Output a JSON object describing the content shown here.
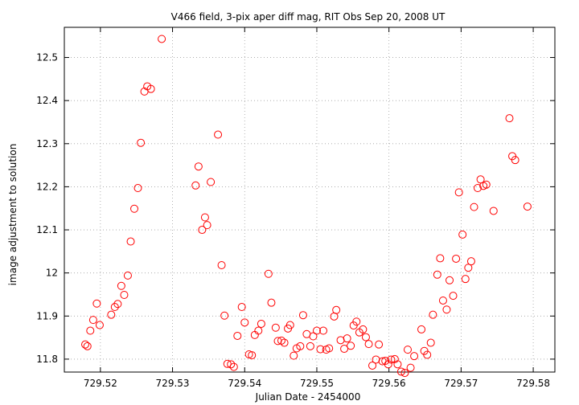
{
  "chart_data": {
    "type": "scatter",
    "title": "V466 field,  3-pix aper diff mag, RIT Obs Sep 20, 2008 UT",
    "xlabel": "Julian Date - 2454000",
    "ylabel": "image adjustment to solution",
    "xlim": [
      729.515,
      729.583
    ],
    "ylim": [
      11.77,
      12.57
    ],
    "xticks": [
      729.52,
      729.53,
      729.54,
      729.55,
      729.56,
      729.57,
      729.58
    ],
    "xtick_labels": [
      "729.52",
      "729.53",
      "729.54",
      "729.55",
      "729.56",
      "729.57",
      "729.58"
    ],
    "yticks": [
      11.8,
      11.9,
      12.0,
      12.1,
      12.2,
      12.3,
      12.4,
      12.5
    ],
    "ytick_labels": [
      "11.8",
      "11.9",
      "12",
      "12.1",
      "12.2",
      "12.3",
      "12.4",
      "12.5"
    ],
    "grid": true,
    "marker_color": "#ff0000",
    "points": [
      [
        729.5179,
        11.834
      ],
      [
        729.5182,
        11.83
      ],
      [
        729.5186,
        11.866
      ],
      [
        729.519,
        11.891
      ],
      [
        729.5195,
        11.929
      ],
      [
        729.5199,
        11.879
      ],
      [
        729.5215,
        11.903
      ],
      [
        729.522,
        11.921
      ],
      [
        729.5224,
        11.928
      ],
      [
        729.5229,
        11.97
      ],
      [
        729.5233,
        11.949
      ],
      [
        729.5238,
        11.994
      ],
      [
        729.5242,
        12.073
      ],
      [
        729.5247,
        12.149
      ],
      [
        729.5252,
        12.197
      ],
      [
        729.5256,
        12.302
      ],
      [
        729.5261,
        12.421
      ],
      [
        729.5265,
        12.433
      ],
      [
        729.527,
        12.427
      ],
      [
        729.5285,
        12.543
      ],
      [
        729.5332,
        12.203
      ],
      [
        729.5336,
        12.247
      ],
      [
        729.5341,
        12.1
      ],
      [
        729.5345,
        12.129
      ],
      [
        729.5348,
        12.111
      ],
      [
        729.5353,
        12.211
      ],
      [
        729.5363,
        12.321
      ],
      [
        729.5368,
        12.018
      ],
      [
        729.5372,
        11.901
      ],
      [
        729.5376,
        11.789
      ],
      [
        729.5381,
        11.788
      ],
      [
        729.5385,
        11.782
      ],
      [
        729.539,
        11.854
      ],
      [
        729.5396,
        11.921
      ],
      [
        729.54,
        11.885
      ],
      [
        729.5406,
        11.811
      ],
      [
        729.541,
        11.809
      ],
      [
        729.5414,
        11.856
      ],
      [
        729.5419,
        11.866
      ],
      [
        729.5423,
        11.882
      ],
      [
        729.5433,
        11.998
      ],
      [
        729.5437,
        11.931
      ],
      [
        729.5443,
        11.873
      ],
      [
        729.5446,
        11.842
      ],
      [
        729.5451,
        11.843
      ],
      [
        729.5455,
        11.838
      ],
      [
        729.546,
        11.871
      ],
      [
        729.5463,
        11.879
      ],
      [
        729.5468,
        11.808
      ],
      [
        729.5472,
        11.825
      ],
      [
        729.5477,
        11.83
      ],
      [
        729.5481,
        11.902
      ],
      [
        729.5486,
        11.858
      ],
      [
        729.5491,
        11.83
      ],
      [
        729.5495,
        11.853
      ],
      [
        729.55,
        11.866
      ],
      [
        729.5505,
        11.823
      ],
      [
        729.5509,
        11.866
      ],
      [
        729.5513,
        11.822
      ],
      [
        729.5517,
        11.825
      ],
      [
        729.5524,
        11.899
      ],
      [
        729.5527,
        11.914
      ],
      [
        729.5533,
        11.844
      ],
      [
        729.5538,
        11.824
      ],
      [
        729.5542,
        11.848
      ],
      [
        729.5547,
        11.831
      ],
      [
        729.5551,
        11.878
      ],
      [
        729.5555,
        11.887
      ],
      [
        729.5559,
        11.862
      ],
      [
        729.5564,
        11.869
      ],
      [
        729.5568,
        11.851
      ],
      [
        729.5572,
        11.835
      ],
      [
        729.5577,
        11.785
      ],
      [
        729.5582,
        11.799
      ],
      [
        729.5586,
        11.834
      ],
      [
        729.5591,
        11.795
      ],
      [
        729.5595,
        11.796
      ],
      [
        729.5599,
        11.788
      ],
      [
        729.5603,
        11.799
      ],
      [
        729.5608,
        11.8
      ],
      [
        729.5612,
        11.788
      ],
      [
        729.5617,
        11.771
      ],
      [
        729.5622,
        11.768
      ],
      [
        729.5626,
        11.822
      ],
      [
        729.563,
        11.78
      ],
      [
        729.5635,
        11.807
      ],
      [
        729.5645,
        11.869
      ],
      [
        729.5649,
        11.819
      ],
      [
        729.5653,
        11.81
      ],
      [
        729.5658,
        11.838
      ],
      [
        729.5661,
        11.903
      ],
      [
        729.5667,
        11.996
      ],
      [
        729.5671,
        12.034
      ],
      [
        729.5675,
        11.936
      ],
      [
        729.568,
        11.915
      ],
      [
        729.5684,
        11.983
      ],
      [
        729.5689,
        11.947
      ],
      [
        729.5693,
        12.033
      ],
      [
        729.5697,
        12.187
      ],
      [
        729.5702,
        12.089
      ],
      [
        729.5706,
        11.986
      ],
      [
        729.571,
        12.012
      ],
      [
        729.5714,
        12.027
      ],
      [
        729.5718,
        12.153
      ],
      [
        729.5723,
        12.197
      ],
      [
        729.5727,
        12.217
      ],
      [
        729.5731,
        12.202
      ],
      [
        729.5735,
        12.205
      ],
      [
        729.5745,
        12.144
      ],
      [
        729.5767,
        12.359
      ],
      [
        729.5771,
        12.271
      ],
      [
        729.5775,
        12.262
      ],
      [
        729.5792,
        12.154
      ]
    ]
  }
}
